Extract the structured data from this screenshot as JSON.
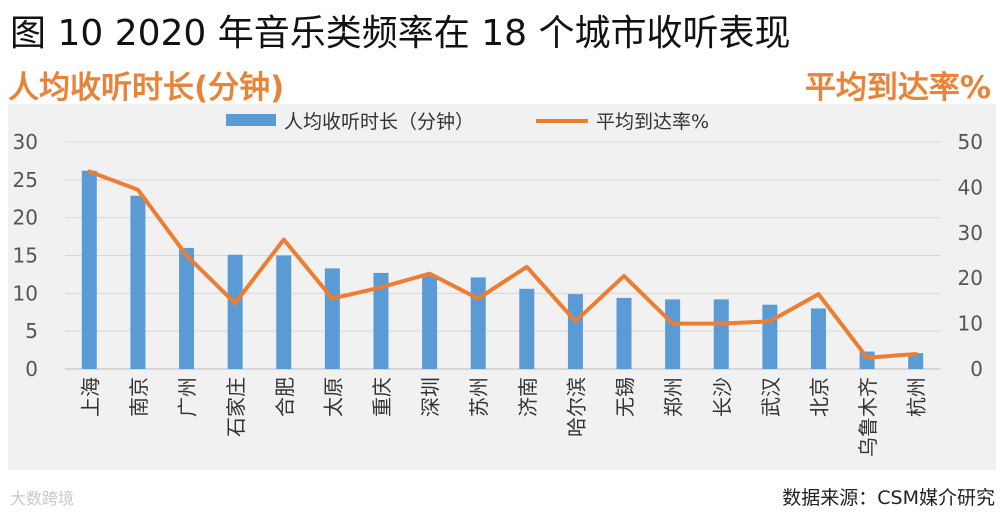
{
  "figure_title": "图 10  2020 年音乐类频率在 18 个城市收听表现",
  "left_axis_title": "人均收听时长(分钟)",
  "right_axis_title": "平均到达率%",
  "source": "数据来源：CSM媒介研究",
  "watermark": "大数跨境",
  "colors": {
    "bar": "#5B9BD5",
    "line": "#ED7D31",
    "axis_title": "#E8833A"
  },
  "chart_data": {
    "type": "bar",
    "categories": [
      "上海",
      "南京",
      "广州",
      "石家庄",
      "合肥",
      "太原",
      "重庆",
      "深圳",
      "苏州",
      "济南",
      "哈尔滨",
      "无锡",
      "郑州",
      "长沙",
      "武汉",
      "北京",
      "乌鲁木齐",
      "杭州"
    ],
    "series": [
      {
        "name": "人均收听时长（分钟）",
        "type": "bar",
        "axis": "left",
        "values": [
          26.2,
          22.9,
          16.0,
          15.1,
          15.0,
          13.3,
          12.7,
          12.4,
          12.1,
          10.6,
          9.9,
          9.4,
          9.2,
          9.2,
          8.5,
          8.0,
          2.3,
          2.1
        ]
      },
      {
        "name": "平均到达率%",
        "type": "line",
        "axis": "right",
        "values": [
          43.5,
          39.5,
          25.0,
          14.5,
          28.5,
          15.5,
          18.0,
          21.0,
          15.5,
          22.5,
          10.5,
          20.5,
          10.0,
          10.0,
          10.5,
          16.5,
          2.5,
          3.3
        ]
      }
    ],
    "ylim": [
      0,
      30
    ],
    "yticks": [
      0,
      5,
      10,
      15,
      20,
      25,
      30
    ],
    "y2lim": [
      0,
      50
    ],
    "y2ticks": [
      0,
      10,
      20,
      30,
      40,
      50
    ],
    "grid": true,
    "legend_position": "top-center"
  }
}
